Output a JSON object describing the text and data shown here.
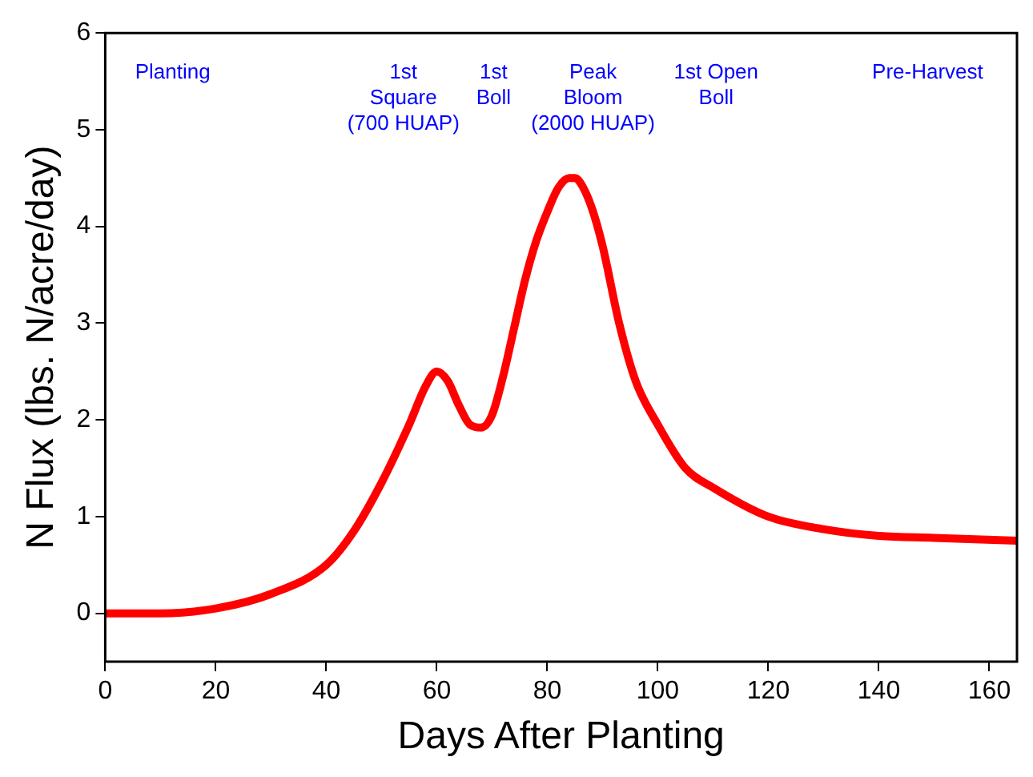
{
  "chart_data": {
    "type": "line",
    "xlabel": "Days After Planting",
    "ylabel": "N Flux (lbs. N/acre/day)",
    "x": [
      0,
      10,
      20,
      30,
      40,
      45,
      50,
      55,
      58,
      60,
      62,
      64,
      66,
      68,
      70,
      72,
      74,
      76,
      78,
      80,
      82,
      84,
      85,
      86,
      88,
      90,
      93,
      96,
      100,
      105,
      110,
      120,
      130,
      140,
      150,
      165
    ],
    "series": [
      {
        "color": "#ff0000",
        "values": [
          0,
          0,
          0.05,
          0.2,
          0.5,
          0.85,
          1.35,
          1.95,
          2.35,
          2.5,
          2.4,
          2.15,
          1.95,
          1.92,
          2.05,
          2.45,
          2.95,
          3.45,
          3.85,
          4.15,
          4.4,
          4.5,
          4.5,
          4.45,
          4.2,
          3.8,
          3.0,
          2.4,
          1.95,
          1.5,
          1.3,
          1.0,
          0.87,
          0.8,
          0.78,
          0.75
        ]
      }
    ],
    "xlim": [
      0,
      165
    ],
    "xticks": [
      0,
      20,
      40,
      60,
      80,
      100,
      120,
      140,
      160
    ],
    "ylim": [
      -0.5,
      6
    ],
    "yticks": [
      0,
      1,
      2,
      3,
      4,
      5,
      6
    ],
    "grid": false,
    "legend": false,
    "marker": "none",
    "line_style": "solid",
    "annotations": [
      "Planting",
      "1st\nSquare\n(700 HUAP)",
      "1st\nBoll",
      "Peak\nBloom\n(2000 HUAP)",
      "1st Open\nBoll",
      "Pre-Harvest"
    ]
  }
}
